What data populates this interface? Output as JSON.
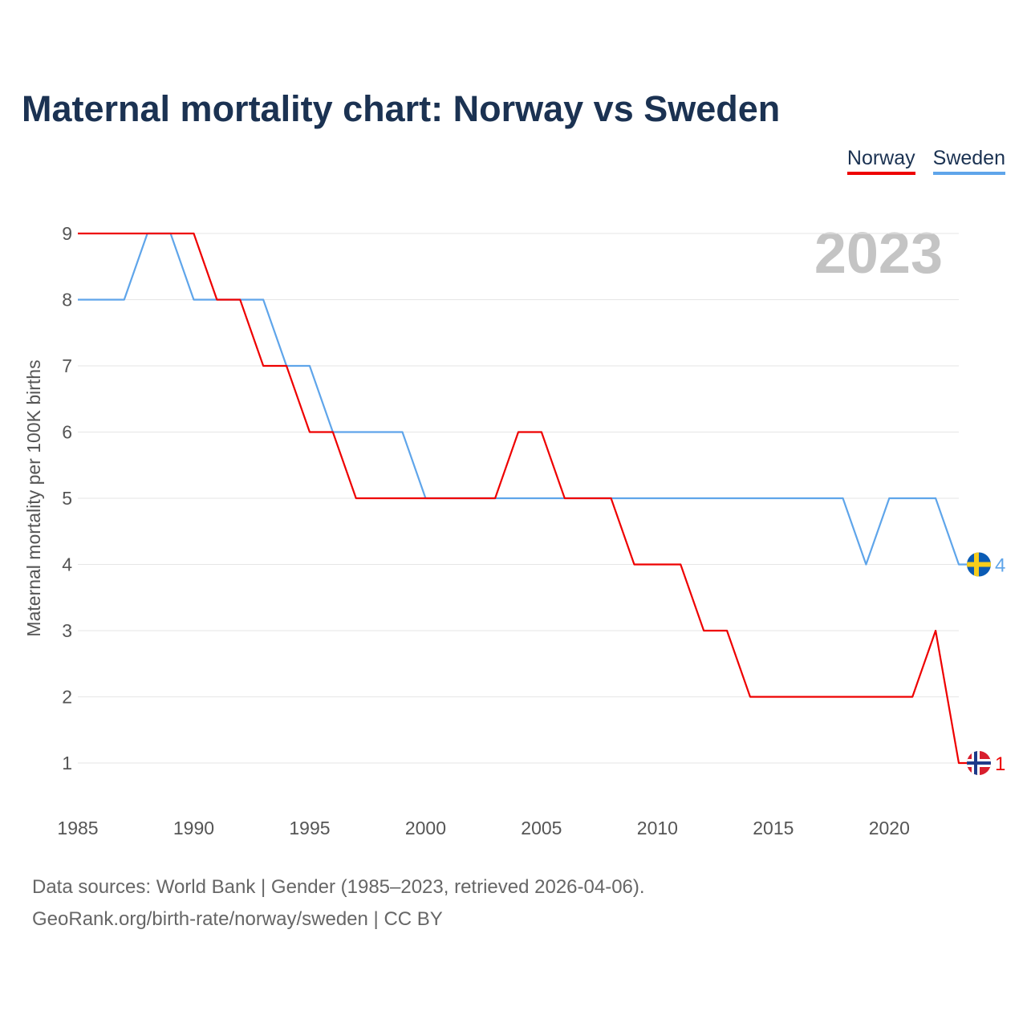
{
  "title": "Maternal mortality chart: Norway vs Sweden",
  "legend": [
    {
      "label": "Norway",
      "color": "#ee0000"
    },
    {
      "label": "Sweden",
      "color": "#5fa5ea"
    }
  ],
  "year_label": "2023",
  "footer": {
    "line1": "Data sources: World Bank | Gender (1985–2023, retrieved 2026-04-06).",
    "line2": "GeoRank.org/birth-rate/norway/sweden | CC BY"
  },
  "chart_data": {
    "type": "line",
    "title": "Maternal mortality chart: Norway vs Sweden",
    "xlabel": "",
    "ylabel": "Maternal mortality per 100K births",
    "xlim": [
      1985,
      2023
    ],
    "ylim": [
      1,
      9
    ],
    "x_ticks": [
      "1985",
      "1990",
      "1995",
      "2000",
      "2005",
      "2010",
      "2015",
      "2020"
    ],
    "y_ticks": [
      "1",
      "2",
      "3",
      "4",
      "5",
      "6",
      "7",
      "8",
      "9"
    ],
    "grid": true,
    "legend_position": "top-right",
    "x": [
      1985,
      1986,
      1987,
      1988,
      1989,
      1990,
      1991,
      1992,
      1993,
      1994,
      1995,
      1996,
      1997,
      1998,
      1999,
      2000,
      2001,
      2002,
      2003,
      2004,
      2005,
      2006,
      2007,
      2008,
      2009,
      2010,
      2011,
      2012,
      2013,
      2014,
      2015,
      2016,
      2017,
      2018,
      2019,
      2020,
      2021,
      2022,
      2023
    ],
    "series": [
      {
        "name": "Norway",
        "color": "#ee0000",
        "end_label": "1",
        "values": [
          9,
          9,
          9,
          9,
          9,
          9,
          8,
          8,
          7,
          7,
          6,
          6,
          5,
          5,
          5,
          5,
          5,
          5,
          5,
          6,
          6,
          5,
          5,
          5,
          4,
          4,
          4,
          3,
          3,
          2,
          2,
          2,
          2,
          2,
          2,
          2,
          2,
          3,
          1
        ]
      },
      {
        "name": "Sweden",
        "color": "#5fa5ea",
        "end_label": "4",
        "values": [
          8,
          8,
          8,
          9,
          9,
          8,
          8,
          8,
          8,
          7,
          7,
          6,
          6,
          6,
          6,
          5,
          5,
          5,
          5,
          5,
          5,
          5,
          5,
          5,
          5,
          5,
          5,
          5,
          5,
          5,
          5,
          5,
          5,
          5,
          4,
          5,
          5,
          5,
          4
        ]
      }
    ]
  }
}
